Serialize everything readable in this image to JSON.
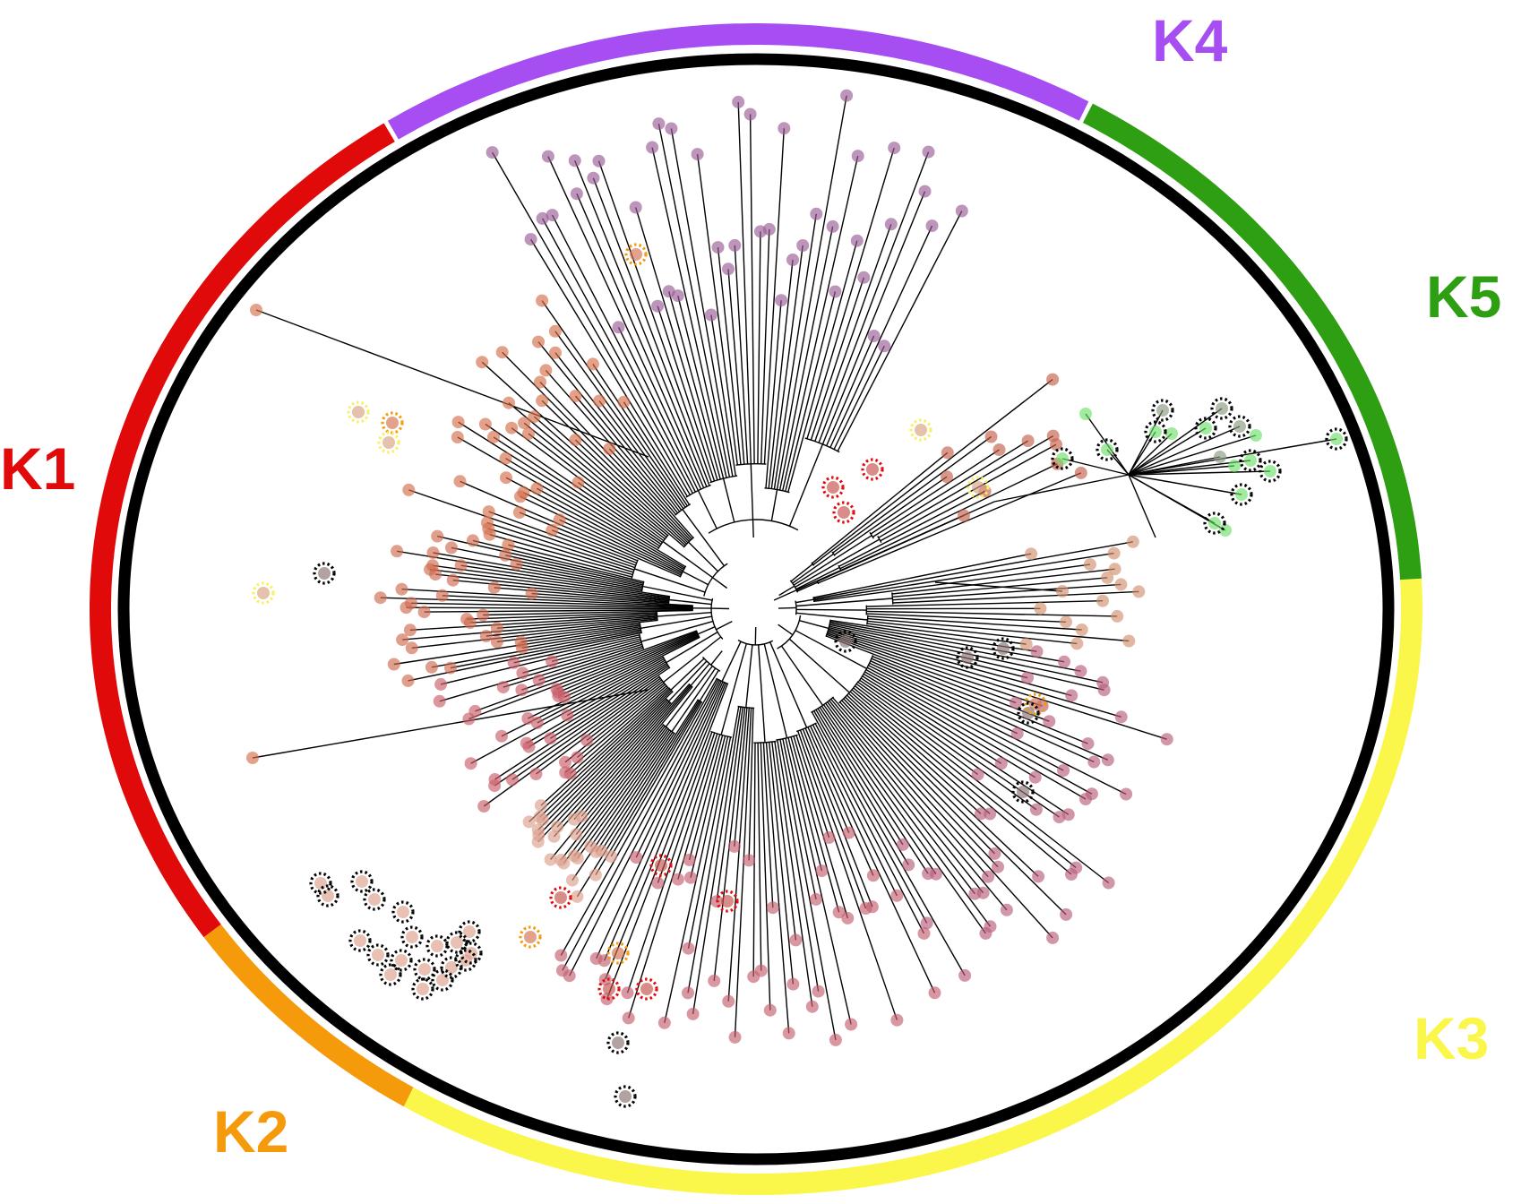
{
  "figure": {
    "type": "radial-phylogenetic-tree",
    "background": "#ffffff",
    "tree_branch_color": "#000000",
    "inner_ring_color": "#000000"
  },
  "clusters": [
    {
      "id": "K1",
      "label": "K1",
      "color": "#e00a0a",
      "tip_color": "#d4704f"
    },
    {
      "id": "K2",
      "label": "K2",
      "color": "#f59a0a",
      "tip_color": "#e0a07a"
    },
    {
      "id": "K3",
      "label": "K3",
      "color": "#fbf64a",
      "tip_color": "#b84f6e"
    },
    {
      "id": "K4",
      "label": "K4",
      "color": "#a64ef2",
      "tip_color": "#9a5590"
    },
    {
      "id": "K5",
      "label": "K5",
      "color": "#2e9e12",
      "tip_color": "#6ee06a"
    }
  ],
  "highlight_rings": [
    {
      "name": "black-dotted",
      "color": "#000000"
    },
    {
      "name": "orange-dotted",
      "color": "#f59a0a"
    },
    {
      "name": "red-dotted",
      "color": "#e00a0a"
    },
    {
      "name": "yellow-dotted",
      "color": "#f8f060"
    }
  ]
}
